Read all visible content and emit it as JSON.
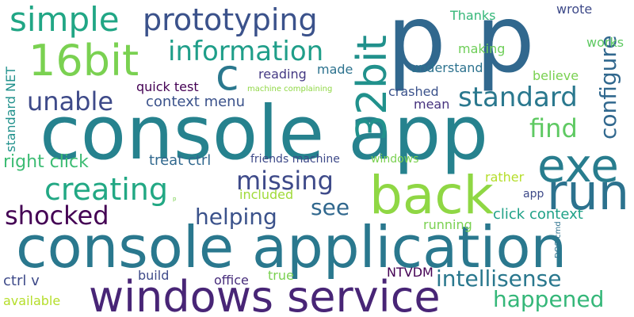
{
  "words": [
    {
      "text": "console app",
      "color": "#26828e"
    },
    {
      "text": "console application",
      "color": "#2a788e"
    },
    {
      "text": "windows service",
      "color": "#482576"
    },
    {
      "text": "p",
      "color": "#31688e"
    },
    {
      "text": "p",
      "color": "#31688e"
    },
    {
      "text": "back",
      "color": "#8fd744"
    },
    {
      "text": "run",
      "color": "#2c728e"
    },
    {
      "text": "exe",
      "color": "#287d8e"
    },
    {
      "text": "16bit",
      "color": "#7ad151"
    },
    {
      "text": "32bit",
      "color": "#21918c"
    },
    {
      "text": "simple",
      "color": "#21a685"
    },
    {
      "text": "prototyping",
      "color": "#3b528b"
    },
    {
      "text": "information",
      "color": "#1f9e89"
    },
    {
      "text": "c",
      "color": "#2a788e"
    },
    {
      "text": "configure",
      "color": "#31688e"
    },
    {
      "text": "unable",
      "color": "#3e4a89"
    },
    {
      "text": "standard",
      "color": "#2a788e"
    },
    {
      "text": "creating",
      "color": "#22a884"
    },
    {
      "text": "missing",
      "color": "#3e4a89"
    },
    {
      "text": "find",
      "color": "#5ec962"
    },
    {
      "text": "shocked",
      "color": "#440154"
    },
    {
      "text": "helping",
      "color": "#3b528b"
    },
    {
      "text": "see",
      "color": "#31688e"
    },
    {
      "text": "intellisense",
      "color": "#2a788e"
    },
    {
      "text": "happened",
      "color": "#35b779"
    },
    {
      "text": "right click",
      "color": "#3dbc74"
    },
    {
      "text": "treat ctrl",
      "color": "#31688e"
    },
    {
      "text": "context menu",
      "color": "#3b528b"
    },
    {
      "text": "quick test",
      "color": "#440154"
    },
    {
      "text": "standard NET",
      "color": "#21918c"
    },
    {
      "text": "reading",
      "color": "#443983"
    },
    {
      "text": "made",
      "color": "#2c728e"
    },
    {
      "text": "understand",
      "color": "#2c728e"
    },
    {
      "text": "making",
      "color": "#6ece58"
    },
    {
      "text": "Thanks",
      "color": "#35b779"
    },
    {
      "text": "wrote",
      "color": "#3e4a89"
    },
    {
      "text": "works",
      "color": "#5ec962"
    },
    {
      "text": "crashed",
      "color": "#3b528b"
    },
    {
      "text": "mean",
      "color": "#46327e"
    },
    {
      "text": "believe",
      "color": "#7ad151"
    },
    {
      "text": "machine complaining",
      "color": "#8fd744"
    },
    {
      "text": "friends machine",
      "color": "#3e4a89"
    },
    {
      "text": "windows",
      "color": "#7ad151"
    },
    {
      "text": "rather",
      "color": "#b5de2b"
    },
    {
      "text": "included",
      "color": "#a0da39"
    },
    {
      "text": "app",
      "color": "#3e4a89"
    },
    {
      "text": "click context",
      "color": "#1fa187"
    },
    {
      "text": "running",
      "color": "#7ad151"
    },
    {
      "text": "DOS cmd",
      "color": "#2c728e"
    },
    {
      "text": "p",
      "color": "#7ad151"
    },
    {
      "text": "ctrl v",
      "color": "#3e4a89"
    },
    {
      "text": "build",
      "color": "#3e4a89"
    },
    {
      "text": "office",
      "color": "#472d7b"
    },
    {
      "text": "true",
      "color": "#7ad151"
    },
    {
      "text": "NTVDM",
      "color": "#440154"
    },
    {
      "text": "available",
      "color": "#b5de2b"
    }
  ]
}
